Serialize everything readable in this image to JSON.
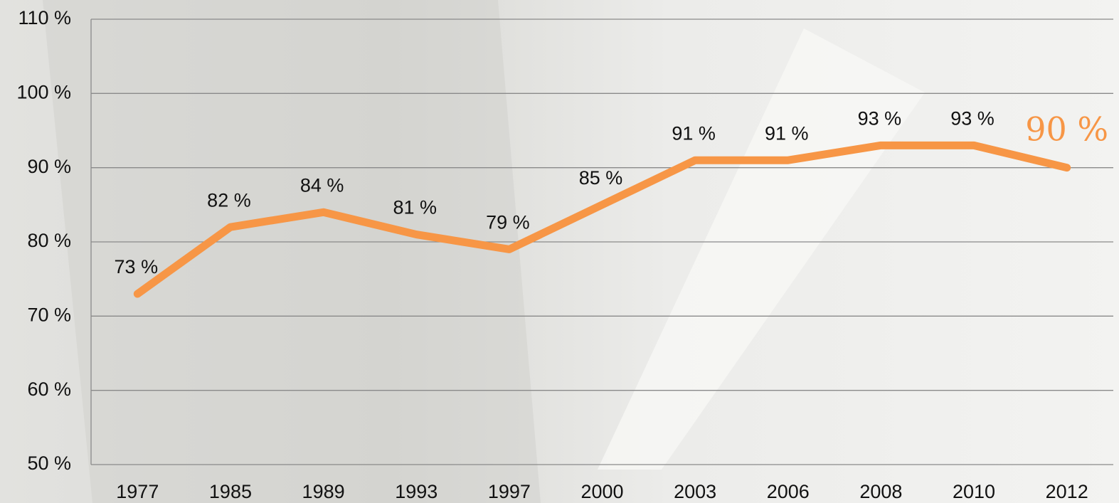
{
  "chart_data": {
    "type": "line",
    "categories": [
      "1977",
      "1985",
      "1989",
      "1993",
      "1997",
      "2000",
      "2003",
      "2006",
      "2008",
      "2010",
      "2012"
    ],
    "values": [
      73,
      82,
      84,
      81,
      79,
      85,
      91,
      91,
      93,
      93,
      90
    ],
    "value_labels": [
      "73 %",
      "82 %",
      "84 %",
      "81 %",
      "79 %",
      "85 %",
      "91 %",
      "91 %",
      "93 %",
      "93 %",
      "90 %"
    ],
    "color": "#f79646",
    "ylim": [
      50,
      110
    ],
    "yticks": [
      {
        "value": 50,
        "label": "50 %"
      },
      {
        "value": 60,
        "label": "60 %"
      },
      {
        "value": 70,
        "label": "70 %"
      },
      {
        "value": 80,
        "label": "80 %"
      },
      {
        "value": 90,
        "label": "90 %"
      },
      {
        "value": 100,
        "label": "100 %"
      },
      {
        "value": 110,
        "label": "110 %"
      }
    ],
    "grid": true
  }
}
